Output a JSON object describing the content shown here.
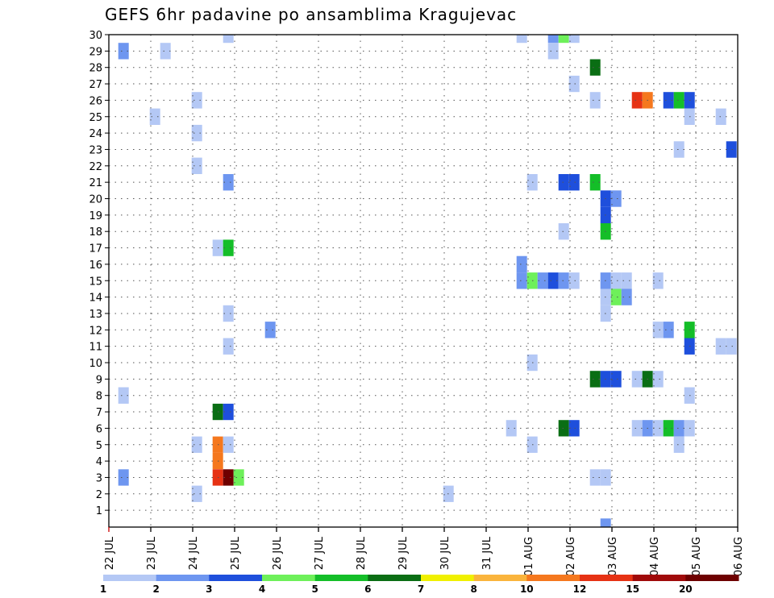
{
  "chart_data": {
    "type": "heatmap",
    "title": "GEFS 6hr padavine po ansamblima Kragujevac",
    "xlabel": "",
    "ylabel": "",
    "x_tick_labels": [
      "22 JUL",
      "23 JUL",
      "24 JUL",
      "25 JUL",
      "26 JUL",
      "27 JUL",
      "28 JUL",
      "29 JUL",
      "30 JUL",
      "31 JUL",
      "01 AUG",
      "02 AUG",
      "03 AUG",
      "04 AUG",
      "05 AUG",
      "06 AUG"
    ],
    "x_range_days": [
      0,
      15
    ],
    "y_tick_labels": [
      "1",
      "2",
      "3",
      "4",
      "5",
      "6",
      "7",
      "8",
      "9",
      "10",
      "11",
      "12",
      "13",
      "14",
      "15",
      "16",
      "17",
      "18",
      "19",
      "20",
      "21",
      "22",
      "23",
      "24",
      "25",
      "26",
      "27",
      "28",
      "29",
      "30"
    ],
    "y_range": [
      0,
      30
    ],
    "grid": true,
    "colorbar": {
      "labels": [
        "1",
        "2",
        "3",
        "4",
        "5",
        "6",
        "7",
        "8",
        "10",
        "12",
        "15",
        "20"
      ],
      "colors": [
        "#b4c8f5",
        "#6e96f0",
        "#1e4fdc",
        "#6ef05a",
        "#14be28",
        "#0a6e14",
        "#f0f000",
        "#fab43c",
        "#f5781e",
        "#e63214",
        "#a00a0a",
        "#6e0000"
      ]
    },
    "cells": [
      {
        "d": 0.35,
        "m": 29,
        "c": 2
      },
      {
        "d": 0.35,
        "m": 8,
        "c": 1
      },
      {
        "d": 0.35,
        "m": 3,
        "c": 2
      },
      {
        "d": 1.1,
        "m": 25,
        "c": 1
      },
      {
        "d": 1.35,
        "m": 29,
        "c": 1
      },
      {
        "d": 2.1,
        "m": 26,
        "c": 1
      },
      {
        "d": 2.1,
        "m": 24,
        "c": 1
      },
      {
        "d": 2.1,
        "m": 22,
        "c": 1
      },
      {
        "d": 2.1,
        "m": 5,
        "c": 1
      },
      {
        "d": 2.1,
        "m": 2,
        "c": 1
      },
      {
        "d": 2.6,
        "m": 17,
        "c": 1
      },
      {
        "d": 2.6,
        "m": 7,
        "c": 6
      },
      {
        "d": 2.6,
        "m": 5,
        "c": 10
      },
      {
        "d": 2.6,
        "m": 4,
        "c": 10
      },
      {
        "d": 2.6,
        "m": 3,
        "c": 12
      },
      {
        "d": 2.85,
        "m": 30,
        "c": 1
      },
      {
        "d": 2.85,
        "m": 21,
        "c": 2
      },
      {
        "d": 2.85,
        "m": 17,
        "c": 5
      },
      {
        "d": 2.85,
        "m": 13,
        "c": 1
      },
      {
        "d": 2.85,
        "m": 11,
        "c": 1
      },
      {
        "d": 2.85,
        "m": 7,
        "c": 3
      },
      {
        "d": 2.85,
        "m": 5,
        "c": 1
      },
      {
        "d": 2.85,
        "m": 3,
        "c": 20
      },
      {
        "d": 3.1,
        "m": 3,
        "c": 4
      },
      {
        "d": 3.85,
        "m": 12,
        "c": 2
      },
      {
        "d": 8.1,
        "m": 2,
        "c": 1
      },
      {
        "d": 9.6,
        "m": 6,
        "c": 1
      },
      {
        "d": 9.85,
        "m": 30,
        "c": 1
      },
      {
        "d": 9.85,
        "m": 16,
        "c": 2
      },
      {
        "d": 9.85,
        "m": 15,
        "c": 2
      },
      {
        "d": 10.1,
        "m": 21,
        "c": 1
      },
      {
        "d": 10.1,
        "m": 15,
        "c": 4
      },
      {
        "d": 10.1,
        "m": 10,
        "c": 1
      },
      {
        "d": 10.1,
        "m": 5,
        "c": 1
      },
      {
        "d": 10.35,
        "m": 15,
        "c": 2
      },
      {
        "d": 10.6,
        "m": 30,
        "c": 2
      },
      {
        "d": 10.6,
        "m": 29,
        "c": 1
      },
      {
        "d": 10.6,
        "m": 15,
        "c": 3
      },
      {
        "d": 10.85,
        "m": 30,
        "c": 4
      },
      {
        "d": 10.85,
        "m": 21,
        "c": 3
      },
      {
        "d": 10.85,
        "m": 18,
        "c": 1
      },
      {
        "d": 10.85,
        "m": 15,
        "c": 2
      },
      {
        "d": 10.85,
        "m": 6,
        "c": 6
      },
      {
        "d": 11.1,
        "m": 30,
        "c": 1
      },
      {
        "d": 11.1,
        "m": 27,
        "c": 1
      },
      {
        "d": 11.1,
        "m": 21,
        "c": 3
      },
      {
        "d": 11.1,
        "m": 15,
        "c": 1
      },
      {
        "d": 11.1,
        "m": 6,
        "c": 3
      },
      {
        "d": 11.6,
        "m": 28,
        "c": 6
      },
      {
        "d": 11.6,
        "m": 26,
        "c": 1
      },
      {
        "d": 11.6,
        "m": 21,
        "c": 5
      },
      {
        "d": 11.6,
        "m": 9,
        "c": 6
      },
      {
        "d": 11.6,
        "m": 3,
        "c": 1
      },
      {
        "d": 11.85,
        "m": 20,
        "c": 3
      },
      {
        "d": 11.85,
        "m": 19,
        "c": 3
      },
      {
        "d": 11.85,
        "m": 18,
        "c": 5
      },
      {
        "d": 11.85,
        "m": 15,
        "c": 2
      },
      {
        "d": 11.85,
        "m": 14,
        "c": 1
      },
      {
        "d": 11.85,
        "m": 13,
        "c": 1
      },
      {
        "d": 11.85,
        "m": 9,
        "c": 3
      },
      {
        "d": 11.85,
        "m": 3,
        "c": 1
      },
      {
        "d": 11.85,
        "m": 0,
        "c": 2
      },
      {
        "d": 12.1,
        "m": 20,
        "c": 2
      },
      {
        "d": 12.1,
        "m": 15,
        "c": 1
      },
      {
        "d": 12.1,
        "m": 14,
        "c": 4
      },
      {
        "d": 12.1,
        "m": 9,
        "c": 3
      },
      {
        "d": 12.35,
        "m": 15,
        "c": 1
      },
      {
        "d": 12.35,
        "m": 14,
        "c": 2
      },
      {
        "d": 12.6,
        "m": 26,
        "c": 12
      },
      {
        "d": 12.6,
        "m": 9,
        "c": 1
      },
      {
        "d": 12.6,
        "m": 6,
        "c": 1
      },
      {
        "d": 12.85,
        "m": 26,
        "c": 10
      },
      {
        "d": 12.85,
        "m": 9,
        "c": 6
      },
      {
        "d": 12.85,
        "m": 6,
        "c": 2
      },
      {
        "d": 13.1,
        "m": 15,
        "c": 1
      },
      {
        "d": 13.1,
        "m": 12,
        "c": 1
      },
      {
        "d": 13.1,
        "m": 9,
        "c": 1
      },
      {
        "d": 13.1,
        "m": 6,
        "c": 1
      },
      {
        "d": 13.35,
        "m": 26,
        "c": 3
      },
      {
        "d": 13.35,
        "m": 12,
        "c": 2
      },
      {
        "d": 13.35,
        "m": 6,
        "c": 5
      },
      {
        "d": 13.6,
        "m": 26,
        "c": 5
      },
      {
        "d": 13.6,
        "m": 23,
        "c": 1
      },
      {
        "d": 13.6,
        "m": 6,
        "c": 2
      },
      {
        "d": 13.6,
        "m": 5,
        "c": 1
      },
      {
        "d": 13.85,
        "m": 26,
        "c": 3
      },
      {
        "d": 13.85,
        "m": 25,
        "c": 1
      },
      {
        "d": 13.85,
        "m": 12,
        "c": 5
      },
      {
        "d": 13.85,
        "m": 11,
        "c": 3
      },
      {
        "d": 13.85,
        "m": 8,
        "c": 1
      },
      {
        "d": 13.85,
        "m": 6,
        "c": 1
      },
      {
        "d": 14.6,
        "m": 25,
        "c": 1
      },
      {
        "d": 14.6,
        "m": 11,
        "c": 1
      },
      {
        "d": 14.85,
        "m": 23,
        "c": 3
      },
      {
        "d": 14.85,
        "m": 11,
        "c": 1
      }
    ]
  }
}
